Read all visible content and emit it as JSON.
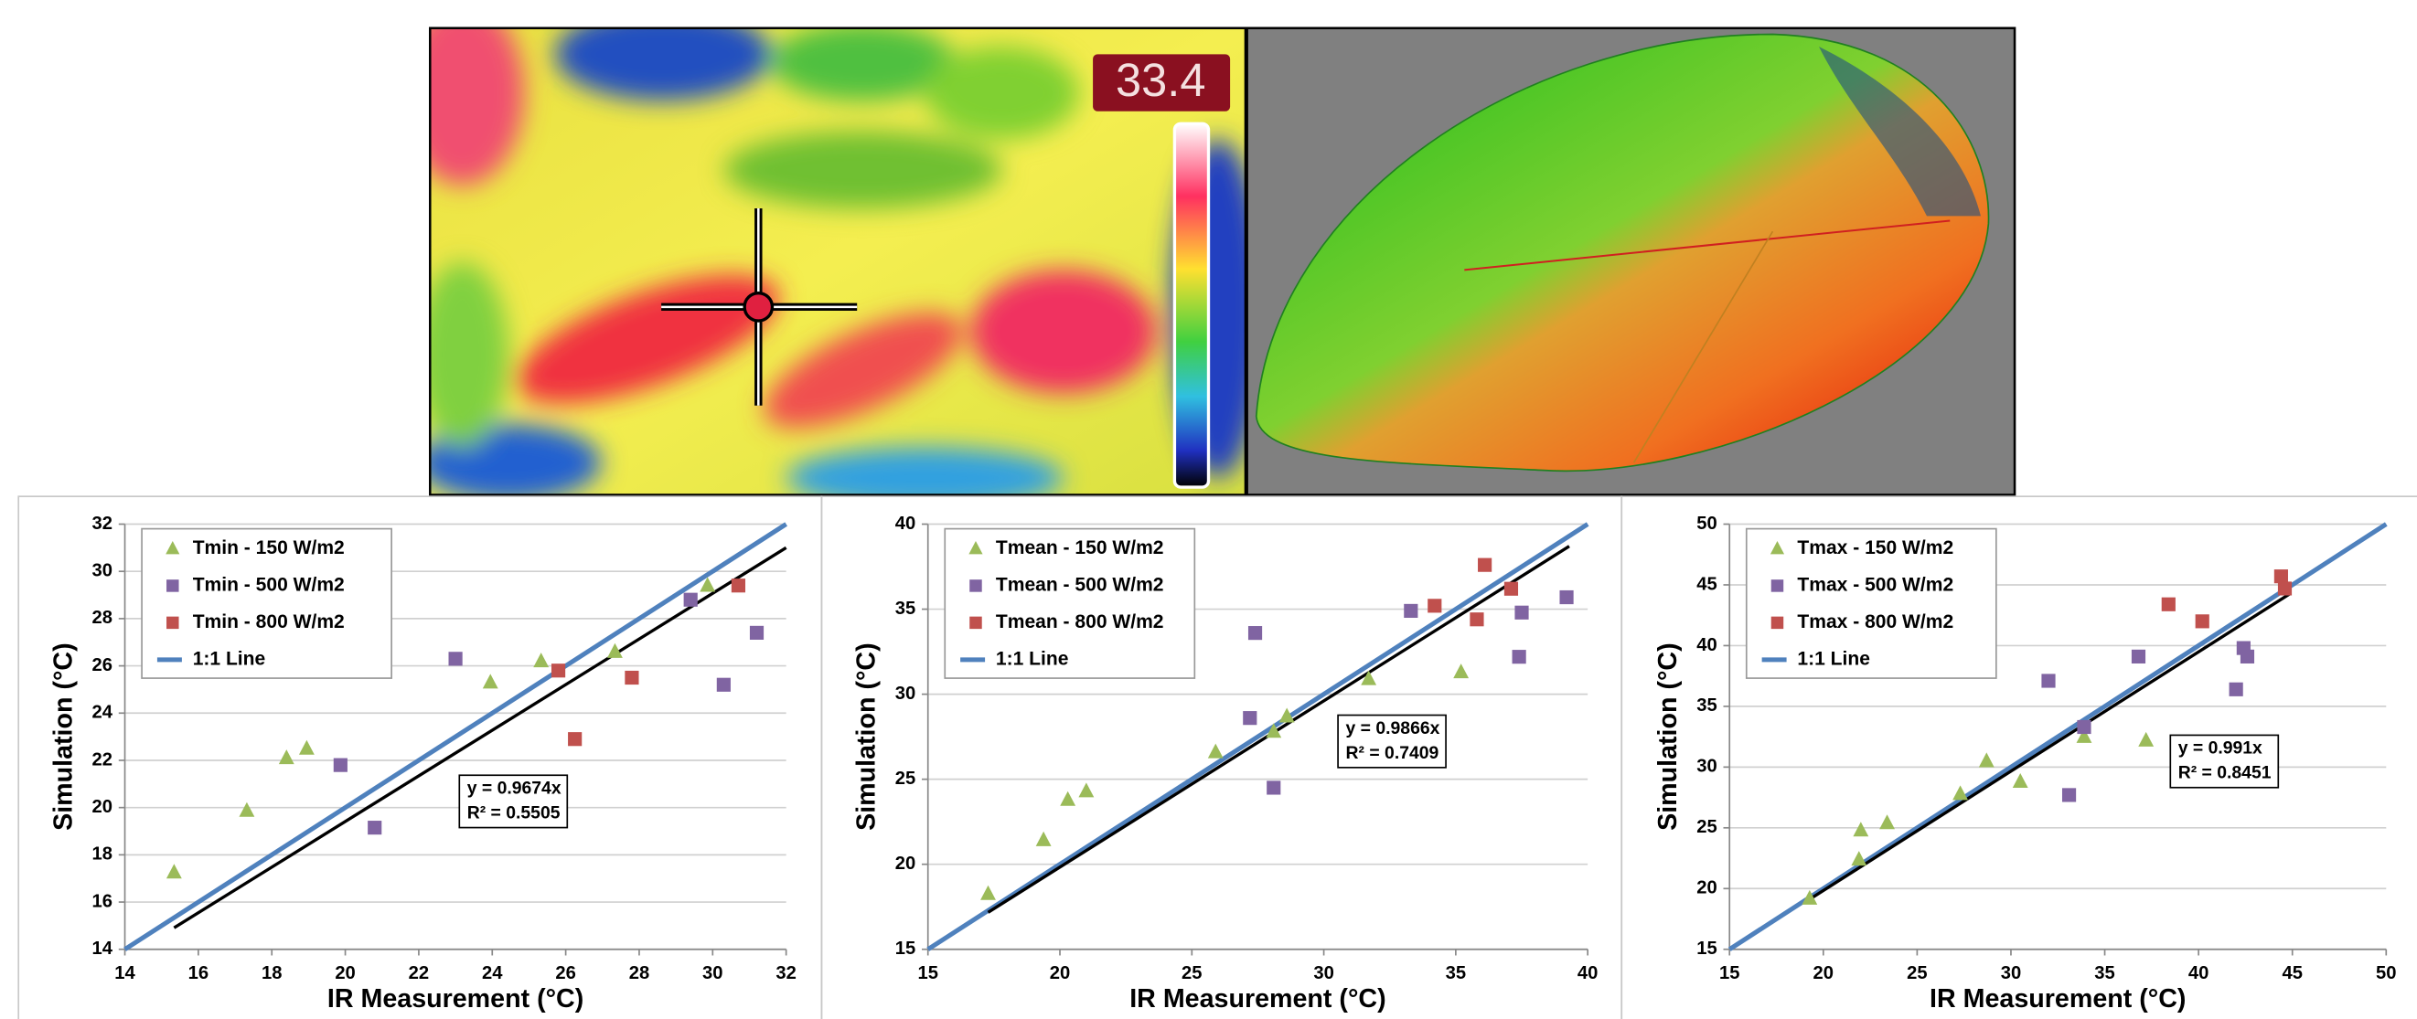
{
  "images": {
    "thermal_reading": "33.4"
  },
  "chart_data": [
    {
      "type": "scatter",
      "x_label": "IR Measurement (°C)",
      "y_label": "Simulation (°C)",
      "xlim": [
        14,
        32
      ],
      "xticks": [
        14,
        16,
        18,
        20,
        22,
        24,
        26,
        28,
        30,
        32
      ],
      "ylim": [
        14,
        32
      ],
      "yticks": [
        14,
        16,
        18,
        20,
        22,
        24,
        26,
        28,
        30,
        32
      ],
      "grid": true,
      "legend": "top-left",
      "annotation": [
        "y = 0.9674x",
        "R² = 0.5505"
      ],
      "series": [
        {
          "name": "Tmin - 150 W/m2",
          "color": "#9bbb59",
          "marker": "triangle",
          "x": [
            15.34,
            17.32,
            18.4,
            18.95,
            23.95,
            25.33,
            27.34,
            29.86
          ],
          "values": [
            17.26,
            19.87,
            22.1,
            22.5,
            25.3,
            26.2,
            26.6,
            29.4
          ]
        },
        {
          "name": "Tmin - 500 W/m2",
          "color": "#8064a2",
          "marker": "square",
          "x": [
            19.87,
            20.8,
            23.0,
            29.4,
            30.3,
            31.2
          ],
          "values": [
            21.8,
            19.15,
            26.3,
            28.8,
            25.2,
            27.4
          ]
        },
        {
          "name": "Tmin - 800 W/m2",
          "color": "#c0504d",
          "marker": "square",
          "x": [
            25.8,
            26.25,
            27.8,
            30.7
          ],
          "values": [
            25.8,
            22.9,
            25.5,
            29.4
          ]
        },
        {
          "name": "1:1 Line",
          "color": "#4f81bd",
          "marker": "line",
          "x": [
            14,
            32
          ],
          "values": [
            14,
            32
          ]
        },
        {
          "color": "#000000",
          "marker": "line",
          "x": [
            15.34,
            32
          ],
          "values": [
            14.91,
            31.0
          ]
        }
      ]
    },
    {
      "type": "scatter",
      "x_label": "IR Measurement (°C)",
      "y_label": "Simulation (°C)",
      "xlim": [
        15,
        40
      ],
      "xticks": [
        15,
        20,
        25,
        30,
        35,
        40
      ],
      "ylim": [
        15,
        40
      ],
      "yticks": [
        15,
        20,
        25,
        30,
        35,
        40
      ],
      "grid": true,
      "legend": "top-left",
      "annotation": [
        "y = 0.9866x",
        "R² = 0.7409"
      ],
      "series": [
        {
          "name": "Tmean - 150 W/m2",
          "color": "#9bbb59",
          "marker": "triangle",
          "x": [
            17.28,
            19.38,
            20.3,
            21.0,
            25.9,
            28.1,
            28.6,
            31.7,
            35.2
          ],
          "values": [
            18.26,
            21.43,
            23.8,
            24.3,
            26.6,
            27.8,
            28.7,
            30.9,
            31.3
          ]
        },
        {
          "name": "Tmean - 500 W/m2",
          "color": "#8064a2",
          "marker": "square",
          "x": [
            27.2,
            27.4,
            28.1,
            33.3,
            37.4,
            37.5,
            39.2
          ],
          "values": [
            28.6,
            33.6,
            24.5,
            34.9,
            32.2,
            34.8,
            35.7
          ]
        },
        {
          "name": "Tmean - 800 W/m2",
          "color": "#c0504d",
          "marker": "square",
          "x": [
            34.2,
            35.8,
            36.1,
            37.1
          ],
          "values": [
            35.2,
            34.4,
            37.6,
            36.2
          ]
        },
        {
          "name": "1:1 Line",
          "color": "#4f81bd",
          "marker": "line",
          "x": [
            15,
            40
          ],
          "values": [
            15,
            40
          ]
        },
        {
          "color": "#000000",
          "marker": "line",
          "x": [
            17.28,
            39.3
          ],
          "values": [
            17.17,
            38.7
          ]
        }
      ]
    },
    {
      "type": "scatter",
      "x_label": "IR Measurement (°C)",
      "y_label": "Simulation (°C)",
      "xlim": [
        15,
        50
      ],
      "xticks": [
        15,
        20,
        25,
        30,
        35,
        40,
        45,
        50
      ],
      "ylim": [
        15,
        50
      ],
      "yticks": [
        15,
        20,
        25,
        30,
        35,
        40,
        45,
        50
      ],
      "grid": true,
      "legend": "top-left",
      "annotation": [
        "y = 0.991x",
        "R² = 0.8451"
      ],
      "series": [
        {
          "name": "Tmax - 150 W/m2",
          "color": "#9bbb59",
          "marker": "triangle",
          "x": [
            19.27,
            21.9,
            22.0,
            23.4,
            27.3,
            28.7,
            30.5,
            33.9,
            37.2
          ],
          "values": [
            19.18,
            22.4,
            24.8,
            25.4,
            27.8,
            30.5,
            28.8,
            32.5,
            32.2
          ]
        },
        {
          "name": "Tmax - 500 W/m2",
          "color": "#8064a2",
          "marker": "square",
          "x": [
            32.0,
            33.1,
            33.9,
            36.8,
            42.0,
            42.4,
            42.6
          ],
          "values": [
            37.1,
            27.7,
            33.3,
            39.1,
            36.4,
            39.8,
            39.1
          ]
        },
        {
          "name": "Tmax - 800 W/m2",
          "color": "#c0504d",
          "marker": "square",
          "x": [
            38.4,
            40.2,
            44.4,
            44.6
          ],
          "values": [
            43.4,
            42.0,
            45.7,
            44.7
          ]
        },
        {
          "name": "1:1 Line",
          "color": "#4f81bd",
          "marker": "line",
          "x": [
            15,
            50
          ],
          "values": [
            15,
            50
          ]
        },
        {
          "color": "#000000",
          "marker": "line",
          "x": [
            19.35,
            44.9
          ],
          "values": [
            19.2,
            44.3
          ]
        }
      ]
    }
  ]
}
